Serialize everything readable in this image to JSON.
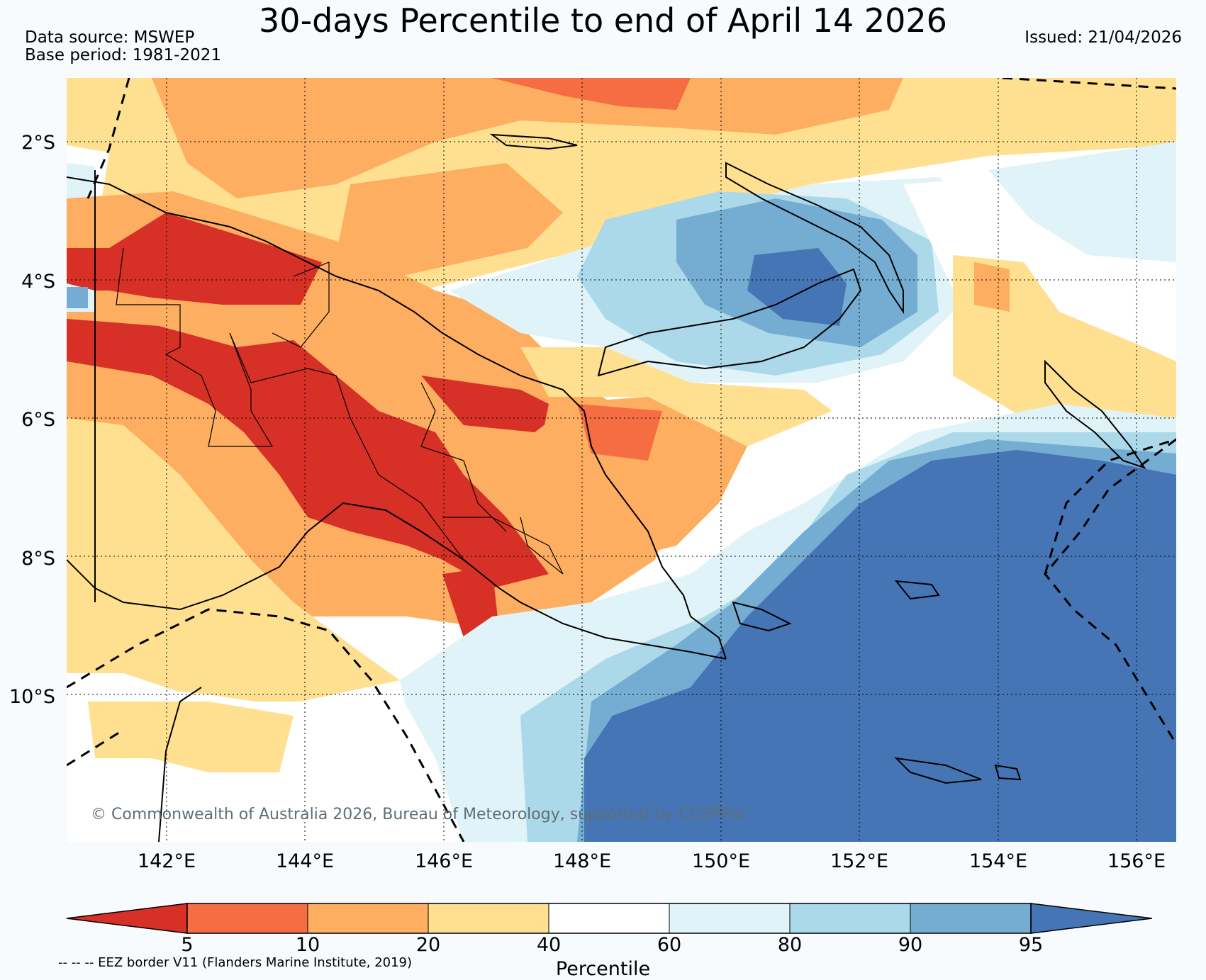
{
  "title": "30-days Percentile to end of April 14 2026",
  "data_source": "Data source: MSWEP",
  "base_period": "Base period: 1981-2021",
  "issued": "Issued: 21/04/2026",
  "copyright": "© Commonwealth of Australia 2026, Bureau of Meteorology, supported by COSPPac",
  "eez_note": "-- -- -- EEZ border V11 (Flanders Marine Institute, 2019)",
  "colorbar": {
    "label": "Percentile",
    "ticks": [
      "5",
      "10",
      "20",
      "40",
      "60",
      "80",
      "90",
      "95"
    ],
    "colors": [
      "#d73027",
      "#f46d43",
      "#fdae61",
      "#fee090",
      "#ffffff",
      "#e0f3f8",
      "#abd9e9",
      "#74add1",
      "#4575b4"
    ]
  },
  "lat_labels": [
    "2°S",
    "4°S",
    "6°S",
    "8°S",
    "10°S"
  ],
  "lon_labels": [
    "142°E",
    "144°E",
    "146°E",
    "148°E",
    "150°E",
    "152°E",
    "154°E",
    "156°E"
  ],
  "map_extent": {
    "lon_min": 140.3,
    "lon_max": 156.5,
    "lat_min": -12.0,
    "lat_max": -1.0
  }
}
